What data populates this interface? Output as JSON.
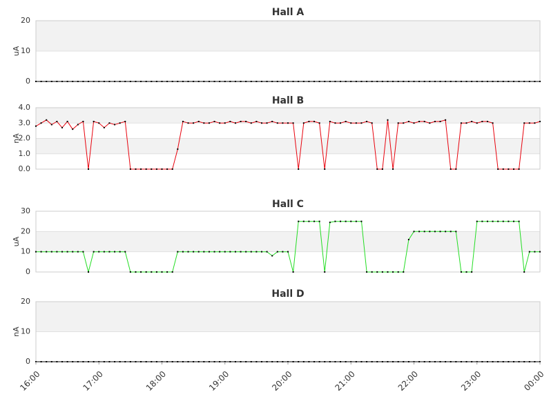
{
  "chart_data": [
    {
      "type": "line",
      "title": "Hall A",
      "ylabel": "uA",
      "ylim": [
        0,
        20
      ],
      "yticks": [
        0,
        10,
        20
      ],
      "xlim": [
        "16:00",
        "00:00"
      ],
      "bands": true,
      "color": "#000000",
      "x": [
        "16:00",
        "16:05",
        "16:10",
        "16:15",
        "16:20",
        "16:25",
        "16:30",
        "16:35",
        "16:40",
        "16:45",
        "16:50",
        "16:55",
        "17:00",
        "17:05",
        "17:10",
        "17:15",
        "17:20",
        "17:25",
        "17:30",
        "17:35",
        "17:40",
        "17:45",
        "17:50",
        "17:55",
        "18:00",
        "18:05",
        "18:10",
        "18:15",
        "18:20",
        "18:25",
        "18:30",
        "18:35",
        "18:40",
        "18:45",
        "18:50",
        "18:55",
        "19:00",
        "19:05",
        "19:10",
        "19:15",
        "19:20",
        "19:25",
        "19:30",
        "19:35",
        "19:40",
        "19:45",
        "19:50",
        "19:55",
        "20:00",
        "20:05",
        "20:10",
        "20:15",
        "20:20",
        "20:25",
        "20:30",
        "20:35",
        "20:40",
        "20:45",
        "20:50",
        "20:55",
        "21:00",
        "21:05",
        "21:10",
        "21:15",
        "21:20",
        "21:25",
        "21:30",
        "21:35",
        "21:40",
        "21:45",
        "21:50",
        "21:55",
        "22:00",
        "22:05",
        "22:10",
        "22:15",
        "22:20",
        "22:25",
        "22:30",
        "22:35",
        "22:40",
        "22:45",
        "22:50",
        "22:55",
        "23:00",
        "23:05",
        "23:10",
        "23:15",
        "23:20",
        "23:25",
        "23:30",
        "23:35",
        "23:40",
        "23:45",
        "23:50",
        "23:55",
        "00:00"
      ],
      "values": [
        0,
        0,
        0,
        0,
        0,
        0,
        0,
        0,
        0,
        0,
        0,
        0,
        0,
        0,
        0,
        0,
        0,
        0,
        0,
        0,
        0,
        0,
        0,
        0,
        0,
        0,
        0,
        0,
        0,
        0,
        0,
        0,
        0,
        0,
        0,
        0,
        0,
        0,
        0,
        0,
        0,
        0,
        0,
        0,
        0,
        0,
        0,
        0,
        0,
        0,
        0,
        0,
        0,
        0,
        0,
        0,
        0,
        0,
        0,
        0,
        0,
        0,
        0,
        0,
        0,
        0,
        0,
        0,
        0,
        0,
        0,
        0,
        0,
        0,
        0,
        0,
        0,
        0,
        0,
        0,
        0,
        0,
        0,
        0,
        0,
        0,
        0,
        0,
        0,
        0,
        0,
        0,
        0,
        0,
        0,
        0,
        0
      ]
    },
    {
      "type": "line",
      "title": "Hall B",
      "ylabel": "nA",
      "ylim": [
        0,
        4
      ],
      "yticks": [
        {
          "value": 0,
          "label": "0.0"
        },
        {
          "value": 1,
          "label": "1.0"
        },
        {
          "value": 2,
          "label": "2.0"
        },
        {
          "value": 3,
          "label": "3.0"
        },
        {
          "value": 4,
          "label": "4.0"
        }
      ],
      "xlim": [
        "16:00",
        "00:00"
      ],
      "bands": true,
      "color": "#e8000b",
      "x": [
        "16:00",
        "16:05",
        "16:10",
        "16:15",
        "16:20",
        "16:25",
        "16:30",
        "16:35",
        "16:40",
        "16:45",
        "16:50",
        "16:55",
        "17:00",
        "17:05",
        "17:10",
        "17:15",
        "17:20",
        "17:25",
        "17:30",
        "17:35",
        "17:40",
        "17:45",
        "17:50",
        "17:55",
        "18:00",
        "18:05",
        "18:10",
        "18:15",
        "18:20",
        "18:25",
        "18:30",
        "18:35",
        "18:40",
        "18:45",
        "18:50",
        "18:55",
        "19:00",
        "19:05",
        "19:10",
        "19:15",
        "19:20",
        "19:25",
        "19:30",
        "19:35",
        "19:40",
        "19:45",
        "19:50",
        "19:55",
        "20:00",
        "20:05",
        "20:10",
        "20:15",
        "20:20",
        "20:25",
        "20:30",
        "20:35",
        "20:40",
        "20:45",
        "20:50",
        "20:55",
        "21:00",
        "21:05",
        "21:10",
        "21:15",
        "21:20",
        "21:25",
        "21:30",
        "21:35",
        "21:40",
        "21:45",
        "21:50",
        "21:55",
        "22:00",
        "22:05",
        "22:10",
        "22:15",
        "22:20",
        "22:25",
        "22:30",
        "22:35",
        "22:40",
        "22:45",
        "22:50",
        "22:55",
        "23:00",
        "23:05",
        "23:10",
        "23:15",
        "23:20",
        "23:25",
        "23:30",
        "23:35",
        "23:40",
        "23:45",
        "23:50",
        "23:55",
        "00:00"
      ],
      "values": [
        2.8,
        3.0,
        3.2,
        2.9,
        3.1,
        2.7,
        3.1,
        2.6,
        2.9,
        3.1,
        0,
        3.1,
        3.0,
        2.7,
        3.0,
        2.9,
        3.0,
        3.1,
        0,
        0,
        0,
        0,
        0,
        0,
        0,
        0,
        0,
        1.3,
        3.1,
        3.0,
        3.0,
        3.1,
        3.0,
        3.0,
        3.1,
        3.0,
        3.0,
        3.1,
        3.0,
        3.1,
        3.1,
        3.0,
        3.1,
        3.0,
        3.0,
        3.1,
        3.0,
        3.0,
        3.0,
        3.0,
        0,
        3.0,
        3.1,
        3.1,
        3.0,
        0,
        3.1,
        3.0,
        3.0,
        3.1,
        3.0,
        3.0,
        3.0,
        3.1,
        3.0,
        0,
        0,
        3.2,
        0,
        3.0,
        3.0,
        3.1,
        3.0,
        3.1,
        3.1,
        3.0,
        3.1,
        3.1,
        3.2,
        0,
        0,
        3.0,
        3.0,
        3.1,
        3.0,
        3.1,
        3.1,
        3.0,
        0,
        0,
        0,
        0,
        0,
        3.0,
        3.0,
        3.0,
        3.1
      ]
    },
    {
      "type": "line",
      "title": "Hall C",
      "ylabel": "uA",
      "ylim": [
        0,
        30
      ],
      "yticks": [
        0,
        10,
        20,
        30
      ],
      "xlim": [
        "16:00",
        "00:00"
      ],
      "bands": true,
      "color": "#22dd22",
      "x": [
        "16:00",
        "16:05",
        "16:10",
        "16:15",
        "16:20",
        "16:25",
        "16:30",
        "16:35",
        "16:40",
        "16:45",
        "16:50",
        "16:55",
        "17:00",
        "17:05",
        "17:10",
        "17:15",
        "17:20",
        "17:25",
        "17:30",
        "17:35",
        "17:40",
        "17:45",
        "17:50",
        "17:55",
        "18:00",
        "18:05",
        "18:10",
        "18:15",
        "18:20",
        "18:25",
        "18:30",
        "18:35",
        "18:40",
        "18:45",
        "18:50",
        "18:55",
        "19:00",
        "19:05",
        "19:10",
        "19:15",
        "19:20",
        "19:25",
        "19:30",
        "19:35",
        "19:40",
        "19:45",
        "19:50",
        "19:55",
        "20:00",
        "20:05",
        "20:10",
        "20:15",
        "20:20",
        "20:25",
        "20:30",
        "20:35",
        "20:40",
        "20:45",
        "20:50",
        "20:55",
        "21:00",
        "21:05",
        "21:10",
        "21:15",
        "21:20",
        "21:25",
        "21:30",
        "21:35",
        "21:40",
        "21:45",
        "21:50",
        "21:55",
        "22:00",
        "22:05",
        "22:10",
        "22:15",
        "22:20",
        "22:25",
        "22:30",
        "22:35",
        "22:40",
        "22:45",
        "22:50",
        "22:55",
        "23:00",
        "23:05",
        "23:10",
        "23:15",
        "23:20",
        "23:25",
        "23:30",
        "23:35",
        "23:40",
        "23:45",
        "23:50",
        "23:55",
        "00:00"
      ],
      "values": [
        10,
        10,
        10,
        10,
        10,
        10,
        10,
        10,
        10,
        10,
        0,
        10,
        10,
        10,
        10,
        10,
        10,
        10,
        0,
        0,
        0,
        0,
        0,
        0,
        0,
        0,
        0,
        10,
        10,
        10,
        10,
        10,
        10,
        10,
        10,
        10,
        10,
        10,
        10,
        10,
        10,
        10,
        10,
        10,
        10,
        8,
        10,
        10,
        10,
        0,
        25,
        25,
        25,
        25,
        25,
        0,
        24.5,
        25,
        25,
        25,
        25,
        25,
        25,
        0,
        0,
        0,
        0,
        0,
        0,
        0,
        0,
        16,
        20,
        20,
        20,
        20,
        20,
        20,
        20,
        20,
        20,
        0,
        0,
        0,
        25,
        25,
        25,
        25,
        25,
        25,
        25,
        25,
        25,
        0,
        10,
        10,
        10
      ]
    },
    {
      "type": "line",
      "title": "Hall D",
      "ylabel": "nA",
      "ylim": [
        0,
        20
      ],
      "yticks": [
        0,
        10,
        20
      ],
      "xlim": [
        "16:00",
        "00:00"
      ],
      "bands": true,
      "color": "#000000",
      "xticks": [
        "16:00",
        "17:00",
        "18:00",
        "19:00",
        "20:00",
        "21:00",
        "22:00",
        "23:00",
        "00:00"
      ],
      "x": [
        "16:00",
        "16:05",
        "16:10",
        "16:15",
        "16:20",
        "16:25",
        "16:30",
        "16:35",
        "16:40",
        "16:45",
        "16:50",
        "16:55",
        "17:00",
        "17:05",
        "17:10",
        "17:15",
        "17:20",
        "17:25",
        "17:30",
        "17:35",
        "17:40",
        "17:45",
        "17:50",
        "17:55",
        "18:00",
        "18:05",
        "18:10",
        "18:15",
        "18:20",
        "18:25",
        "18:30",
        "18:35",
        "18:40",
        "18:45",
        "18:50",
        "18:55",
        "19:00",
        "19:05",
        "19:10",
        "19:15",
        "19:20",
        "19:25",
        "19:30",
        "19:35",
        "19:40",
        "19:45",
        "19:50",
        "19:55",
        "20:00",
        "20:05",
        "20:10",
        "20:15",
        "20:20",
        "20:25",
        "20:30",
        "20:35",
        "20:40",
        "20:45",
        "20:50",
        "20:55",
        "21:00",
        "21:05",
        "21:10",
        "21:15",
        "21:20",
        "21:25",
        "21:30",
        "21:35",
        "21:40",
        "21:45",
        "21:50",
        "21:55",
        "22:00",
        "22:05",
        "22:10",
        "22:15",
        "22:20",
        "22:25",
        "22:30",
        "22:35",
        "22:40",
        "22:45",
        "22:50",
        "22:55",
        "23:00",
        "23:05",
        "23:10",
        "23:15",
        "23:20",
        "23:25",
        "23:30",
        "23:35",
        "23:40",
        "23:45",
        "23:50",
        "23:55",
        "00:00"
      ],
      "values": [
        0,
        0,
        0,
        0,
        0,
        0,
        0,
        0,
        0,
        0,
        0,
        0,
        0,
        0,
        0,
        0,
        0,
        0,
        0,
        0,
        0,
        0,
        0,
        0,
        0,
        0,
        0,
        0,
        0,
        0,
        0,
        0,
        0,
        0,
        0,
        0,
        0,
        0,
        0,
        0,
        0,
        0,
        0,
        0,
        0,
        0,
        0,
        0,
        0,
        0,
        0,
        0,
        0,
        0,
        0,
        0,
        0,
        0,
        0,
        0,
        0,
        0,
        0,
        0,
        0,
        0,
        0,
        0,
        0,
        0,
        0,
        0,
        0,
        0,
        0,
        0,
        0,
        0,
        0,
        0,
        0,
        0,
        0,
        0,
        0,
        0,
        0,
        0,
        0,
        0,
        0,
        0,
        0,
        0,
        0,
        0,
        0
      ]
    }
  ]
}
